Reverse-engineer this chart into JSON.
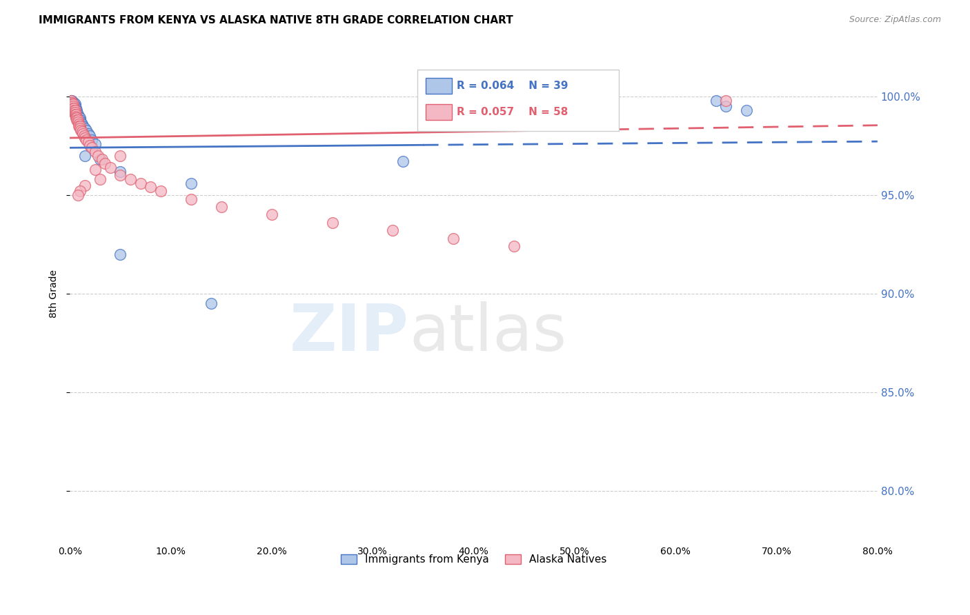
{
  "title": "IMMIGRANTS FROM KENYA VS ALASKA NATIVE 8TH GRADE CORRELATION CHART",
  "source": "Source: ZipAtlas.com",
  "ylabel": "8th Grade",
  "yaxis_values": [
    0.8,
    0.85,
    0.9,
    0.95,
    1.0
  ],
  "xlim": [
    0.0,
    0.8
  ],
  "ylim": [
    0.775,
    1.025
  ],
  "legend_blue_r": "0.064",
  "legend_blue_n": "39",
  "legend_pink_r": "0.057",
  "legend_pink_n": "58",
  "blue_color": "#aec6e8",
  "pink_color": "#f4b8c4",
  "blue_line_color": "#4472c4",
  "pink_line_color": "#e06070",
  "blue_scatter_x": [
    0.001,
    0.002,
    0.002,
    0.003,
    0.003,
    0.003,
    0.004,
    0.004,
    0.004,
    0.005,
    0.005,
    0.006,
    0.006,
    0.007,
    0.007,
    0.008,
    0.008,
    0.009,
    0.01,
    0.01,
    0.011,
    0.012,
    0.013,
    0.015,
    0.016,
    0.018,
    0.02,
    0.022,
    0.025,
    0.015,
    0.03,
    0.05,
    0.12,
    0.14,
    0.33,
    0.64,
    0.65,
    0.67,
    0.05
  ],
  "blue_scatter_y": [
    0.998,
    0.998,
    0.997,
    0.997,
    0.996,
    0.995,
    0.997,
    0.996,
    0.994,
    0.996,
    0.995,
    0.994,
    0.993,
    0.993,
    0.992,
    0.991,
    0.99,
    0.99,
    0.989,
    0.988,
    0.987,
    0.986,
    0.985,
    0.984,
    0.983,
    0.981,
    0.98,
    0.978,
    0.976,
    0.97,
    0.968,
    0.962,
    0.956,
    0.895,
    0.967,
    0.998,
    0.995,
    0.993,
    0.92
  ],
  "pink_scatter_x": [
    0.001,
    0.001,
    0.002,
    0.002,
    0.002,
    0.003,
    0.003,
    0.003,
    0.004,
    0.004,
    0.004,
    0.005,
    0.005,
    0.005,
    0.006,
    0.006,
    0.006,
    0.007,
    0.007,
    0.008,
    0.008,
    0.009,
    0.009,
    0.01,
    0.01,
    0.011,
    0.012,
    0.013,
    0.014,
    0.015,
    0.016,
    0.018,
    0.02,
    0.022,
    0.025,
    0.028,
    0.032,
    0.035,
    0.04,
    0.05,
    0.06,
    0.07,
    0.08,
    0.09,
    0.12,
    0.15,
    0.2,
    0.26,
    0.32,
    0.38,
    0.44,
    0.05,
    0.025,
    0.03,
    0.015,
    0.01,
    0.008,
    0.65
  ],
  "pink_scatter_y": [
    0.998,
    0.997,
    0.997,
    0.996,
    0.995,
    0.996,
    0.995,
    0.994,
    0.994,
    0.993,
    0.992,
    0.993,
    0.992,
    0.991,
    0.991,
    0.99,
    0.989,
    0.989,
    0.988,
    0.988,
    0.987,
    0.986,
    0.985,
    0.985,
    0.984,
    0.983,
    0.982,
    0.981,
    0.98,
    0.979,
    0.978,
    0.977,
    0.975,
    0.974,
    0.972,
    0.97,
    0.968,
    0.966,
    0.964,
    0.96,
    0.958,
    0.956,
    0.954,
    0.952,
    0.948,
    0.944,
    0.94,
    0.936,
    0.932,
    0.928,
    0.924,
    0.97,
    0.963,
    0.958,
    0.955,
    0.952,
    0.95,
    0.998
  ],
  "blue_trend_x": [
    0.0,
    0.35,
    0.35,
    0.8
  ],
  "blue_trend_solid": true,
  "pink_trend_x": [
    0.0,
    0.44,
    0.44,
    0.8
  ],
  "pink_trend_solid": true
}
